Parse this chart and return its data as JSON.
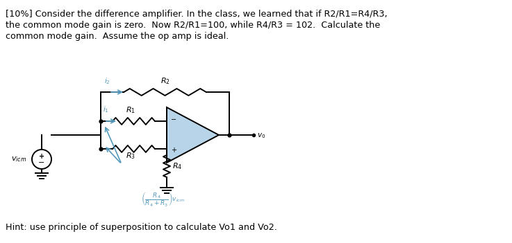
{
  "title_line1": "[10%] Consider the difference amplifier. In the class, we learned that if R2/R1=R4/R3,",
  "title_line2": "the common mode gain is zero.  Now R2/R1=100, while R4/R3 = 102.  Calculate the",
  "title_line3": "common mode gain.  Assume the op amp is ideal.",
  "hint_text": "Hint: use principle of superposition to calculate Vo1 and Vo2.",
  "bg_color": "#ffffff",
  "circuit_color": "#000000",
  "blue_color": "#5599bb",
  "fig_width": 7.37,
  "fig_height": 3.51,
  "dpi": 100
}
